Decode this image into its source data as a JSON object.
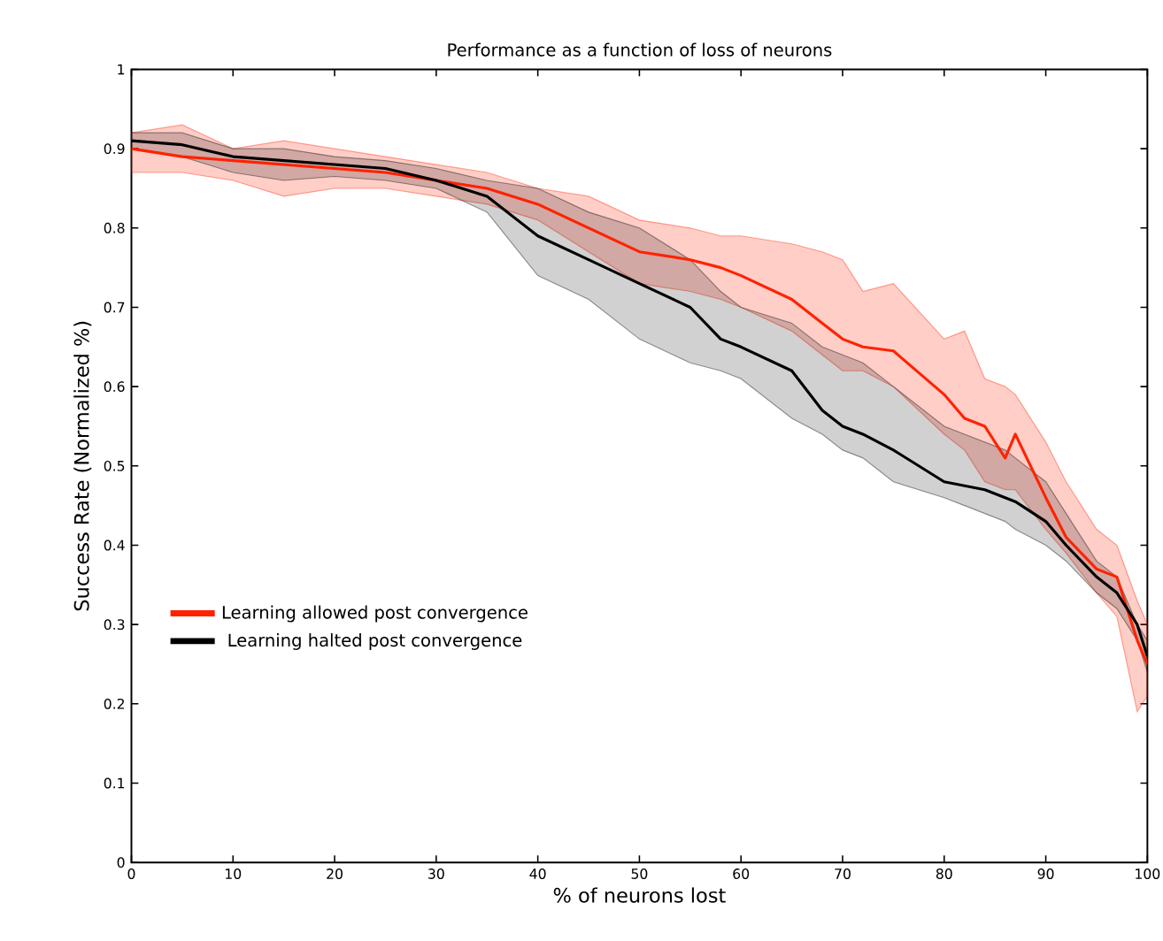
{
  "chart_data": {
    "type": "line",
    "title": "Performance as a function of loss of neurons",
    "xlabel": "% of neurons lost",
    "ylabel": "Success Rate (Normalized %)",
    "x": [
      0,
      5,
      10,
      15,
      20,
      25,
      30,
      35,
      40,
      45,
      50,
      55,
      58,
      60,
      65,
      68,
      70,
      72,
      75,
      80,
      82,
      84,
      86,
      87,
      90,
      92,
      95,
      97,
      99,
      100
    ],
    "series": [
      {
        "name": "Learning allowed post convergence",
        "color": "#ff2200",
        "values": [
          0.9,
          0.89,
          0.885,
          0.88,
          0.875,
          0.87,
          0.86,
          0.85,
          0.83,
          0.8,
          0.77,
          0.76,
          0.75,
          0.74,
          0.71,
          0.68,
          0.66,
          0.65,
          0.645,
          0.59,
          0.56,
          0.55,
          0.51,
          0.54,
          0.46,
          0.41,
          0.37,
          0.36,
          0.28,
          0.25
        ],
        "upper": [
          0.92,
          0.93,
          0.9,
          0.91,
          0.9,
          0.89,
          0.88,
          0.87,
          0.85,
          0.84,
          0.81,
          0.8,
          0.79,
          0.79,
          0.78,
          0.77,
          0.76,
          0.72,
          0.73,
          0.66,
          0.67,
          0.61,
          0.6,
          0.59,
          0.53,
          0.48,
          0.42,
          0.4,
          0.33,
          0.3
        ],
        "lower": [
          0.87,
          0.87,
          0.86,
          0.84,
          0.85,
          0.85,
          0.84,
          0.83,
          0.81,
          0.77,
          0.73,
          0.72,
          0.71,
          0.7,
          0.67,
          0.64,
          0.62,
          0.62,
          0.6,
          0.54,
          0.52,
          0.48,
          0.47,
          0.47,
          0.42,
          0.39,
          0.34,
          0.31,
          0.19,
          0.21
        ]
      },
      {
        "name": "Learning halted post convergence",
        "color": "#000000",
        "values": [
          0.91,
          0.905,
          0.89,
          0.885,
          0.88,
          0.875,
          0.86,
          0.84,
          0.79,
          0.76,
          0.73,
          0.7,
          0.66,
          0.65,
          0.62,
          0.57,
          0.55,
          0.54,
          0.52,
          0.48,
          0.475,
          0.47,
          0.46,
          0.455,
          0.43,
          0.4,
          0.36,
          0.34,
          0.3,
          0.26
        ],
        "upper": [
          0.92,
          0.92,
          0.9,
          0.9,
          0.89,
          0.885,
          0.875,
          0.86,
          0.85,
          0.82,
          0.8,
          0.76,
          0.72,
          0.7,
          0.68,
          0.65,
          0.64,
          0.63,
          0.6,
          0.55,
          0.54,
          0.53,
          0.52,
          0.51,
          0.48,
          0.44,
          0.38,
          0.36,
          0.3,
          0.28
        ],
        "lower": [
          0.9,
          0.89,
          0.87,
          0.86,
          0.865,
          0.86,
          0.85,
          0.82,
          0.74,
          0.71,
          0.66,
          0.63,
          0.62,
          0.61,
          0.56,
          0.54,
          0.52,
          0.51,
          0.48,
          0.46,
          0.45,
          0.44,
          0.43,
          0.42,
          0.4,
          0.38,
          0.34,
          0.32,
          0.28,
          0.24
        ]
      }
    ],
    "xlim": [
      0,
      100
    ],
    "ylim": [
      0,
      1
    ],
    "xticks": [
      0,
      10,
      20,
      30,
      40,
      50,
      60,
      70,
      80,
      90,
      100
    ],
    "yticks": [
      0,
      0.1,
      0.2,
      0.3,
      0.4,
      0.5,
      0.6,
      0.7,
      0.8,
      0.9,
      1
    ],
    "grid": false,
    "legend": "bottom left",
    "marker": "none",
    "line_style": "solid"
  }
}
